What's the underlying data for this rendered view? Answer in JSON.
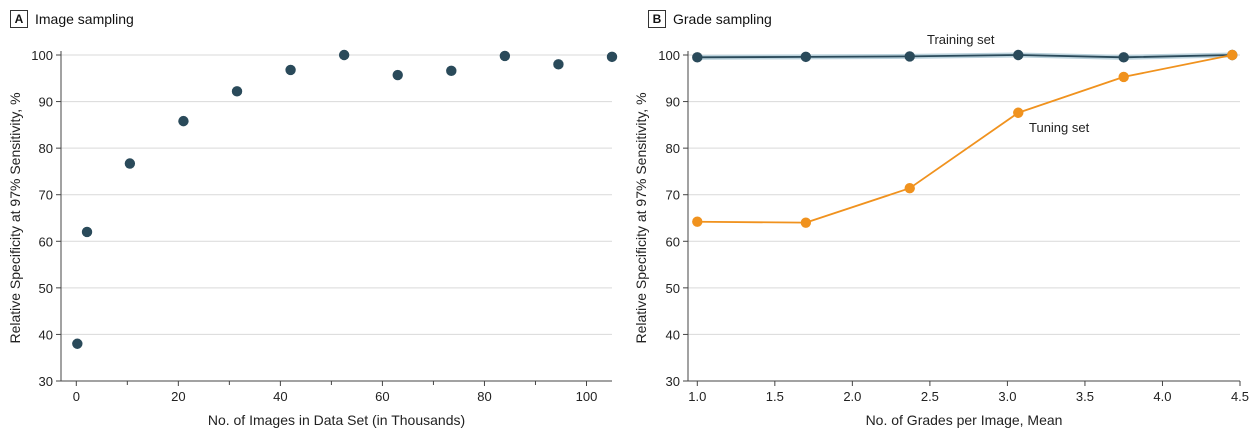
{
  "panels": {
    "a": {
      "letter": "A",
      "title": "Image sampling"
    },
    "b": {
      "letter": "B",
      "title": "Grade sampling"
    }
  },
  "colors": {
    "navy": "#2a4a5a",
    "orange": "#f0921e",
    "grid": "#d9d9d9",
    "axis": "#444444"
  },
  "chart_data": [
    {
      "type": "scatter",
      "title": "Image sampling",
      "xlabel": "No. of Images in Data Set (in Thousands)",
      "ylabel": "Relative Specificity at 97% Sensitivity, %",
      "xlim": [
        -3,
        105
      ],
      "ylim": [
        30,
        100
      ],
      "xticks": [
        0,
        20,
        40,
        60,
        80,
        100
      ],
      "xminor": [
        10,
        30,
        50,
        70,
        90
      ],
      "yticks": [
        30,
        40,
        50,
        60,
        70,
        80,
        90,
        100
      ],
      "grid": true,
      "series": [
        {
          "color": "#2a4a5a",
          "points": [
            {
              "x": 0.2,
              "y": 38
            },
            {
              "x": 2.1,
              "y": 62
            },
            {
              "x": 10.5,
              "y": 76.7
            },
            {
              "x": 21,
              "y": 85.8
            },
            {
              "x": 31.5,
              "y": 92.2
            },
            {
              "x": 42,
              "y": 96.8
            },
            {
              "x": 52.5,
              "y": 100
            },
            {
              "x": 63,
              "y": 95.7
            },
            {
              "x": 73.5,
              "y": 96.6
            },
            {
              "x": 84,
              "y": 99.8
            },
            {
              "x": 94.5,
              "y": 98
            },
            {
              "x": 105,
              "y": 99.6
            }
          ]
        }
      ]
    },
    {
      "type": "line",
      "title": "Grade sampling",
      "xlabel": "No. of Grades per Image, Mean",
      "ylabel": "Relative Specificity at 97% Sensitivity, %",
      "xlim": [
        0.94,
        4.5
      ],
      "ylim": [
        30,
        100
      ],
      "xticks": [
        1.0,
        1.5,
        2.0,
        2.5,
        3.0,
        3.5,
        4.0,
        4.5
      ],
      "yticks": [
        30,
        40,
        50,
        60,
        70,
        80,
        90,
        100
      ],
      "grid": true,
      "series": [
        {
          "name": "Training set",
          "color": "#2a4a5a",
          "points": [
            {
              "x": 1.0,
              "y": 99.5
            },
            {
              "x": 1.7,
              "y": 99.6
            },
            {
              "x": 2.37,
              "y": 99.7
            },
            {
              "x": 3.07,
              "y": 100
            },
            {
              "x": 3.75,
              "y": 99.5
            },
            {
              "x": 4.45,
              "y": 100
            }
          ]
        },
        {
          "name": "Tuning set",
          "color": "#f0921e",
          "points": [
            {
              "x": 1.0,
              "y": 64.2
            },
            {
              "x": 1.7,
              "y": 64
            },
            {
              "x": 2.37,
              "y": 71.4
            },
            {
              "x": 3.07,
              "y": 87.6
            },
            {
              "x": 3.75,
              "y": 95.3
            },
            {
              "x": 4.45,
              "y": 100
            }
          ]
        }
      ]
    }
  ]
}
